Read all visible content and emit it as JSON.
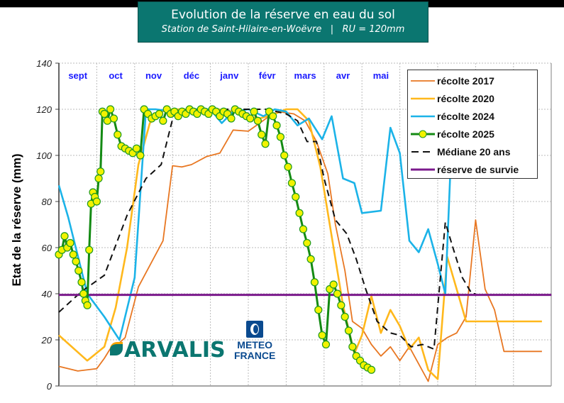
{
  "header": {
    "title": "Evolution de la réserve en eau du sol",
    "subtitle": "Station de Saint-Hilaire-en-Woëvre   |   RU = 120mm"
  },
  "logos": {
    "arvalis": "ARVALIS",
    "meteo_line1": "METEO",
    "meteo_line2": "FRANCE"
  },
  "chart_data": {
    "type": "line",
    "title": "Evolution de la réserve en eau du sol",
    "subtitle": "Station de Saint-Hilaire-en-Woëvre | RU = 120mm",
    "xlabel": "",
    "ylabel": "Etat de la réserve (mm)",
    "ylim": [
      0,
      140
    ],
    "yticks": [
      0,
      20,
      40,
      60,
      80,
      100,
      120,
      140
    ],
    "month_labels": [
      "sept",
      "oct",
      "nov",
      "déc",
      "janv",
      "févr",
      "mars",
      "avr",
      "mai"
    ],
    "x_unit": "months since 1 Sept",
    "xlim": [
      0,
      13
    ],
    "grid": true,
    "legend_position": "upper right",
    "series": [
      {
        "name": "récolte 2017",
        "color": "#e87722",
        "width": 1.8,
        "style": "solid",
        "x": [
          0,
          0.5,
          1.0,
          1.2,
          1.35,
          1.55,
          1.75,
          2.1,
          2.75,
          3.0,
          3.25,
          3.5,
          3.9,
          4.25,
          4.6,
          5.0,
          5.3,
          5.55,
          5.8,
          6.2,
          6.5,
          6.8,
          7.1,
          7.3,
          7.55,
          7.75,
          8.0,
          8.25,
          8.5,
          8.75,
          9.0,
          9.25,
          9.75,
          10.0,
          10.25,
          10.5,
          10.75,
          11.0,
          11.25,
          11.5,
          11.75,
          12.0,
          12.25,
          12.5,
          12.75
        ],
        "y": [
          8.5,
          6.5,
          7.5,
          12,
          16,
          18,
          21,
          43,
          63,
          95.5,
          95,
          96,
          99.5,
          101,
          111,
          110.5,
          114,
          117,
          119,
          118,
          115,
          106,
          92,
          70,
          50,
          28,
          25,
          18,
          13,
          17,
          11,
          17,
          2,
          18,
          21,
          23,
          30,
          72,
          42,
          33,
          15,
          15,
          15,
          15,
          15
        ]
      },
      {
        "name": "récolte 2020",
        "color": "#ffb81c",
        "width": 2.6,
        "style": "solid",
        "x": [
          0,
          0.75,
          1.2,
          1.5,
          1.8,
          2.1,
          2.4,
          2.7,
          3.0,
          3.4,
          3.8,
          4.2,
          4.6,
          5.0,
          5.3,
          5.7,
          6.0,
          6.3,
          6.6,
          6.9,
          7.2,
          7.5,
          7.8,
          8.0,
          8.25,
          8.5,
          8.75,
          9.0,
          9.25,
          9.5,
          9.75,
          10.0,
          10.25,
          10.5,
          10.75,
          11.0,
          11.25,
          11.5,
          11.75,
          12.0,
          12.25,
          12.5,
          12.75
        ],
        "y": [
          22,
          11,
          17,
          34,
          60,
          96,
          114,
          119,
          120,
          120,
          120,
          120,
          119,
          117,
          116,
          118,
          120,
          120,
          115,
          95,
          65,
          35,
          14,
          22,
          39,
          23,
          33,
          26,
          16,
          21,
          7,
          3,
          56,
          42,
          28,
          28,
          28,
          28,
          28,
          28,
          28,
          28,
          28
        ]
      },
      {
        "name": "récolte 2024",
        "color": "#1bb3e8",
        "width": 2.6,
        "style": "solid",
        "x": [
          0,
          0.25,
          0.75,
          1.2,
          1.6,
          2.0,
          2.3,
          2.55,
          3.0,
          3.5,
          4.0,
          4.3,
          4.6,
          5.0,
          5.4,
          5.7,
          6.0,
          6.3,
          6.6,
          6.95,
          7.2,
          7.5,
          7.8,
          8.0,
          8.5,
          8.75,
          9.0,
          9.25,
          9.5,
          9.75,
          10.0,
          10.2,
          10.4
        ],
        "y": [
          87,
          73,
          40,
          30,
          20,
          47,
          120,
          120,
          119,
          120,
          120,
          114,
          119,
          120,
          117,
          120,
          119,
          113,
          116,
          107,
          117,
          90,
          88,
          75,
          76,
          112,
          101,
          63,
          58,
          68,
          53,
          40,
          120
        ]
      },
      {
        "name": "récolte 2025",
        "color": "#138a13",
        "width": 3,
        "style": "solid-markers",
        "marker_color": "#f2f200",
        "x": [
          0,
          0.08,
          0.15,
          0.22,
          0.3,
          0.38,
          0.45,
          0.52,
          0.6,
          0.65,
          0.7,
          0.75,
          0.8,
          0.85,
          0.9,
          0.95,
          1.0,
          1.05,
          1.1,
          1.15,
          1.2,
          1.28,
          1.36,
          1.45,
          1.55,
          1.65,
          1.75,
          1.85,
          1.95,
          2.05,
          2.15,
          2.25,
          2.35,
          2.45,
          2.55,
          2.65,
          2.75,
          2.85,
          2.95,
          3.05,
          3.15,
          3.25,
          3.35,
          3.45,
          3.55,
          3.65,
          3.75,
          3.85,
          3.95,
          4.05,
          4.15,
          4.25,
          4.35,
          4.45,
          4.55,
          4.65,
          4.75,
          4.85,
          4.95,
          5.05,
          5.15,
          5.25,
          5.35,
          5.45,
          5.55,
          5.65,
          5.75,
          5.85,
          5.95,
          6.05,
          6.15,
          6.25,
          6.35,
          6.45,
          6.55,
          6.65,
          6.75,
          6.85,
          6.95,
          7.05,
          7.15,
          7.25,
          7.35,
          7.45,
          7.55,
          7.65,
          7.75,
          7.85,
          7.95,
          8.05,
          8.15,
          8.25
        ],
        "y": [
          57,
          59,
          65,
          60,
          62,
          57,
          54,
          50,
          45,
          40,
          37,
          35,
          59,
          79,
          84,
          82,
          80,
          90,
          93,
          119,
          118,
          115,
          120,
          116,
          109,
          104,
          103,
          102,
          101,
          103,
          100,
          120,
          118,
          116,
          117,
          118,
          115,
          120,
          118,
          119,
          117,
          119,
          118,
          120,
          119,
          118,
          120,
          119,
          118,
          120,
          119,
          117,
          119,
          118,
          116,
          120,
          119,
          118,
          117,
          116,
          119,
          115,
          109,
          105,
          119,
          117,
          113,
          108,
          100,
          95,
          88,
          82,
          75,
          68,
          62,
          55,
          45,
          33,
          22,
          18,
          42,
          44,
          40,
          35,
          30,
          24,
          17,
          13,
          11,
          9,
          8,
          7
        ]
      },
      {
        "name": "Médiane 20 ans",
        "color": "#111111",
        "width": 2,
        "style": "dashed",
        "x": [
          0,
          0.6,
          1.2,
          1.8,
          2.3,
          2.7,
          3.05,
          3.5,
          4.0,
          4.5,
          5.0,
          5.5,
          6.0,
          6.3,
          6.55,
          6.8,
          7.0,
          7.3,
          7.6,
          7.85,
          8.1,
          8.4,
          8.75,
          9.0,
          9.3,
          9.6,
          9.9,
          10.2,
          10.4,
          10.65,
          10.9,
          11.0
        ],
        "y": [
          32,
          41,
          48,
          74,
          90,
          96,
          119,
          120,
          120,
          120,
          120,
          120,
          118,
          115,
          106,
          106,
          90,
          72,
          66,
          55,
          42,
          28,
          23,
          22,
          17,
          18,
          16,
          71,
          60,
          47,
          40,
          40
        ]
      },
      {
        "name": "réserve de survie",
        "color": "#7b1a8c",
        "width": 3,
        "style": "solid",
        "x": [
          0,
          13
        ],
        "y": [
          39.5,
          39.5
        ]
      }
    ]
  }
}
